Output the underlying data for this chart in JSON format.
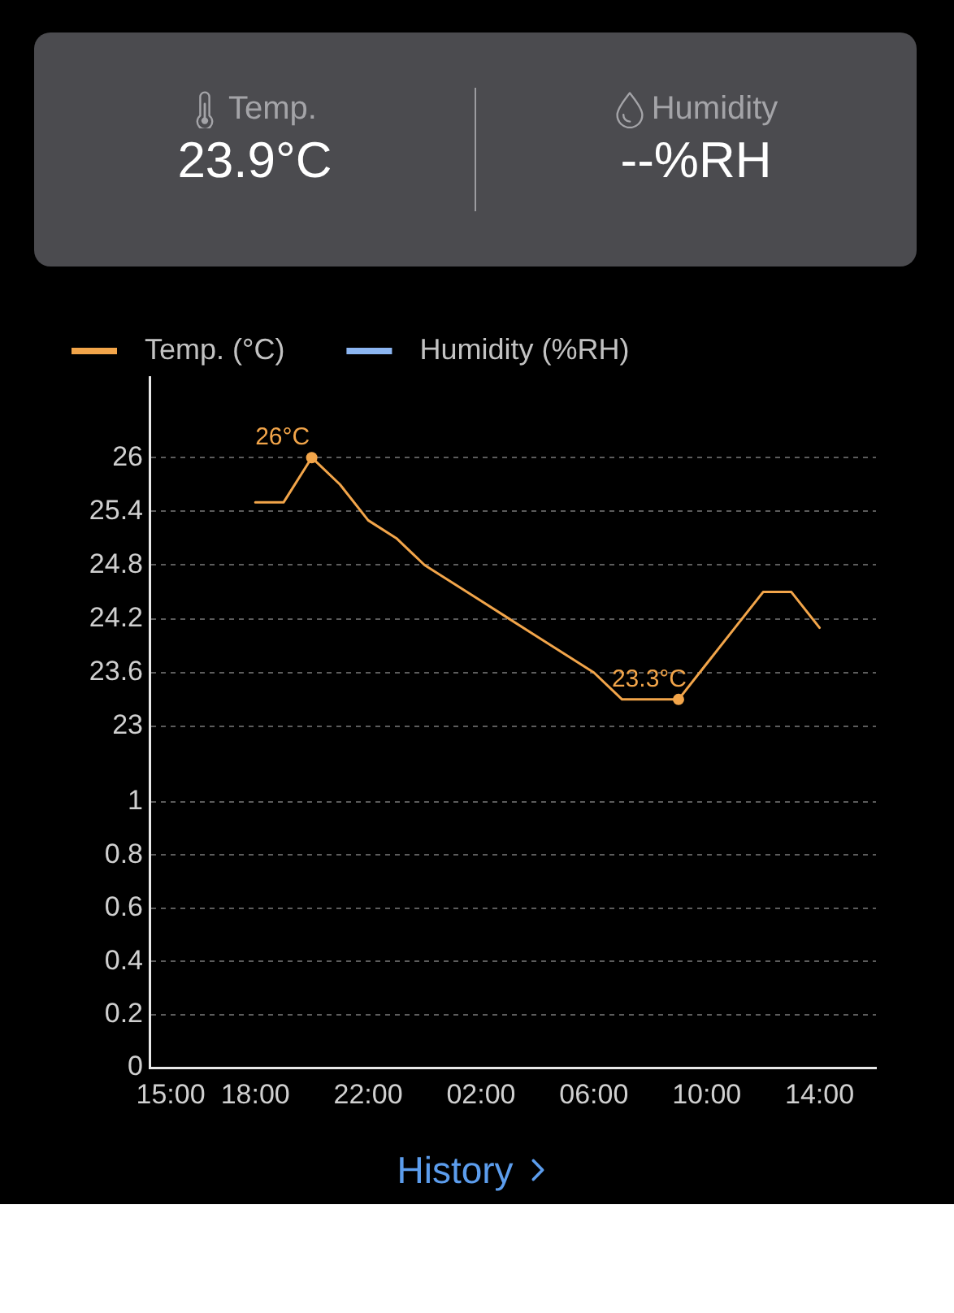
{
  "chart_data": [
    {
      "type": "other",
      "annotations": [
        "Temp.",
        "23.9°C",
        "Humidity",
        "--%RH"
      ]
    },
    {
      "type": "line",
      "x": [
        "--01-01T18:00",
        "--01-01T19:00",
        "--01-01T20:00",
        "--01-01T21:00",
        "--01-01T22:00",
        "--01-01T23:00",
        "--01-02T00:00",
        "--01-02T01:00",
        "--01-02T02:00",
        "--01-02T03:00",
        "--01-02T04:00",
        "--01-02T05:00",
        "--01-02T06:00",
        "--01-02T07:00",
        "--01-02T08:00",
        "--01-02T09:00",
        "--01-02T10:00",
        "--01-02T11:00",
        "--01-02T12:00",
        "--01-02T13:00",
        "--01-02T14:00"
      ],
      "series": [
        {
          "name": "Temp. (°C)",
          "color": "#f2a54a",
          "values": [
            25.5,
            25.5,
            26,
            25.7,
            25.3,
            25.1,
            24.8,
            24.6,
            24.4,
            24.2,
            24,
            23.8,
            23.6,
            23.3,
            23.3,
            23.3,
            23.7,
            24.1,
            24.5,
            24.5,
            24.1
          ]
        },
        {
          "name": "Humidity (%RH)",
          "color": "#8cb6f2",
          "values": [
            null,
            null,
            null,
            null,
            null,
            null,
            null,
            null,
            null,
            null,
            null,
            null,
            null,
            null,
            null,
            null,
            null,
            null,
            null,
            null,
            null
          ]
        }
      ],
      "xlim": [
        "--01-01T14:15",
        "--01-02T16:00"
      ],
      "ylim": [
        22.6,
        26.9
      ],
      "yticks": [
        23,
        23.6,
        24.2,
        24.8,
        25.4,
        26
      ],
      "tick_labels": "y",
      "grid": "y",
      "legend": "top left",
      "marker": "none",
      "line_style": "solid",
      "annotations": [
        {
          "text": "26°C",
          "x": "--01-01T20:00",
          "y": 26
        },
        {
          "text": "23.3°C",
          "x": "--01-02T09:00",
          "y": 23.3
        }
      ]
    },
    {
      "type": "line",
      "xlim": [
        "--01-01T14:15",
        "--01-02T16:00"
      ],
      "xticks": [
        {
          "value": "--01-01T15:00",
          "label": "15:00"
        },
        {
          "value": "--01-01T18:00",
          "label": "18:00"
        },
        {
          "value": "--01-01T22:00",
          "label": "22:00"
        },
        {
          "value": "--01-02T02:00",
          "label": "02:00"
        },
        {
          "value": "--01-02T06:00",
          "label": "06:00"
        },
        {
          "value": "--01-02T10:00",
          "label": "10:00"
        },
        {
          "value": "--01-02T14:00",
          "label": "14:00"
        }
      ],
      "ylim": [
        0,
        1.15
      ],
      "yticks": [
        0,
        0.2,
        0.4,
        0.6,
        0.8,
        1
      ],
      "grid": "y",
      "annotations": [
        "History"
      ]
    }
  ]
}
